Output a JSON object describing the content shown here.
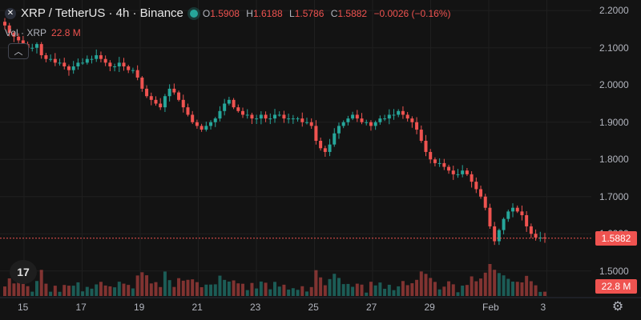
{
  "header": {
    "symbol_title": "XRP / TetherUS · 4h · Binance",
    "open_label": "O",
    "open": "1.5908",
    "high_label": "H",
    "high": "1.6188",
    "low_label": "L",
    "low": "1.5786",
    "close_label": "C",
    "close": "1.5882",
    "change": "−0.0026 (−0.16%)"
  },
  "volume_legend": {
    "label": "Vol · XRP",
    "value": "22.8 M"
  },
  "price_axis": {
    "ticks": [
      "2.2000",
      "2.1000",
      "2.0000",
      "1.9000",
      "1.8000",
      "1.7000",
      "1.6000",
      "1.5000"
    ]
  },
  "time_axis": {
    "ticks": [
      "15",
      "17",
      "19",
      "21",
      "23",
      "25",
      "27",
      "29",
      "Feb",
      "3"
    ]
  },
  "last_price_tag": "1.5882",
  "volume_tag": "22.8 M",
  "colors": {
    "up": "#26a69a",
    "down": "#ef5350",
    "background": "#131313",
    "grid": "#1f1f1f"
  },
  "icons": {
    "collapse": "chevron-up-icon",
    "settings": "gear-icon",
    "brand": "tradingview-logo"
  },
  "chart_data": {
    "type": "candlestick",
    "x_range": [
      "14",
      "Feb 3"
    ],
    "y_range": [
      1.45,
      2.25
    ],
    "close_series": [
      2.16,
      2.14,
      2.13,
      2.12,
      2.11,
      2.1,
      2.1,
      2.11,
      2.08,
      2.07,
      2.07,
      2.06,
      2.06,
      2.05,
      2.04,
      2.05,
      2.06,
      2.06,
      2.07,
      2.07,
      2.08,
      2.07,
      2.06,
      2.05,
      2.05,
      2.06,
      2.05,
      2.04,
      2.04,
      2.02,
      1.99,
      1.97,
      1.96,
      1.95,
      1.94,
      1.97,
      1.99,
      1.98,
      1.96,
      1.94,
      1.92,
      1.9,
      1.89,
      1.88,
      1.89,
      1.9,
      1.91,
      1.93,
      1.95,
      1.96,
      1.94,
      1.93,
      1.92,
      1.92,
      1.91,
      1.91,
      1.92,
      1.91,
      1.91,
      1.92,
      1.92,
      1.91,
      1.91,
      1.91,
      1.91,
      1.9,
      1.9,
      1.89,
      1.85,
      1.83,
      1.82,
      1.84,
      1.87,
      1.89,
      1.9,
      1.91,
      1.92,
      1.91,
      1.9,
      1.9,
      1.89,
      1.9,
      1.91,
      1.91,
      1.92,
      1.92,
      1.93,
      1.92,
      1.91,
      1.9,
      1.88,
      1.85,
      1.82,
      1.8,
      1.79,
      1.79,
      1.78,
      1.77,
      1.76,
      1.76,
      1.77,
      1.76,
      1.74,
      1.72,
      1.7,
      1.67,
      1.62,
      1.58,
      1.61,
      1.64,
      1.66,
      1.67,
      1.66,
      1.65,
      1.62,
      1.6,
      1.59,
      1.59,
      1.5882
    ]
  }
}
